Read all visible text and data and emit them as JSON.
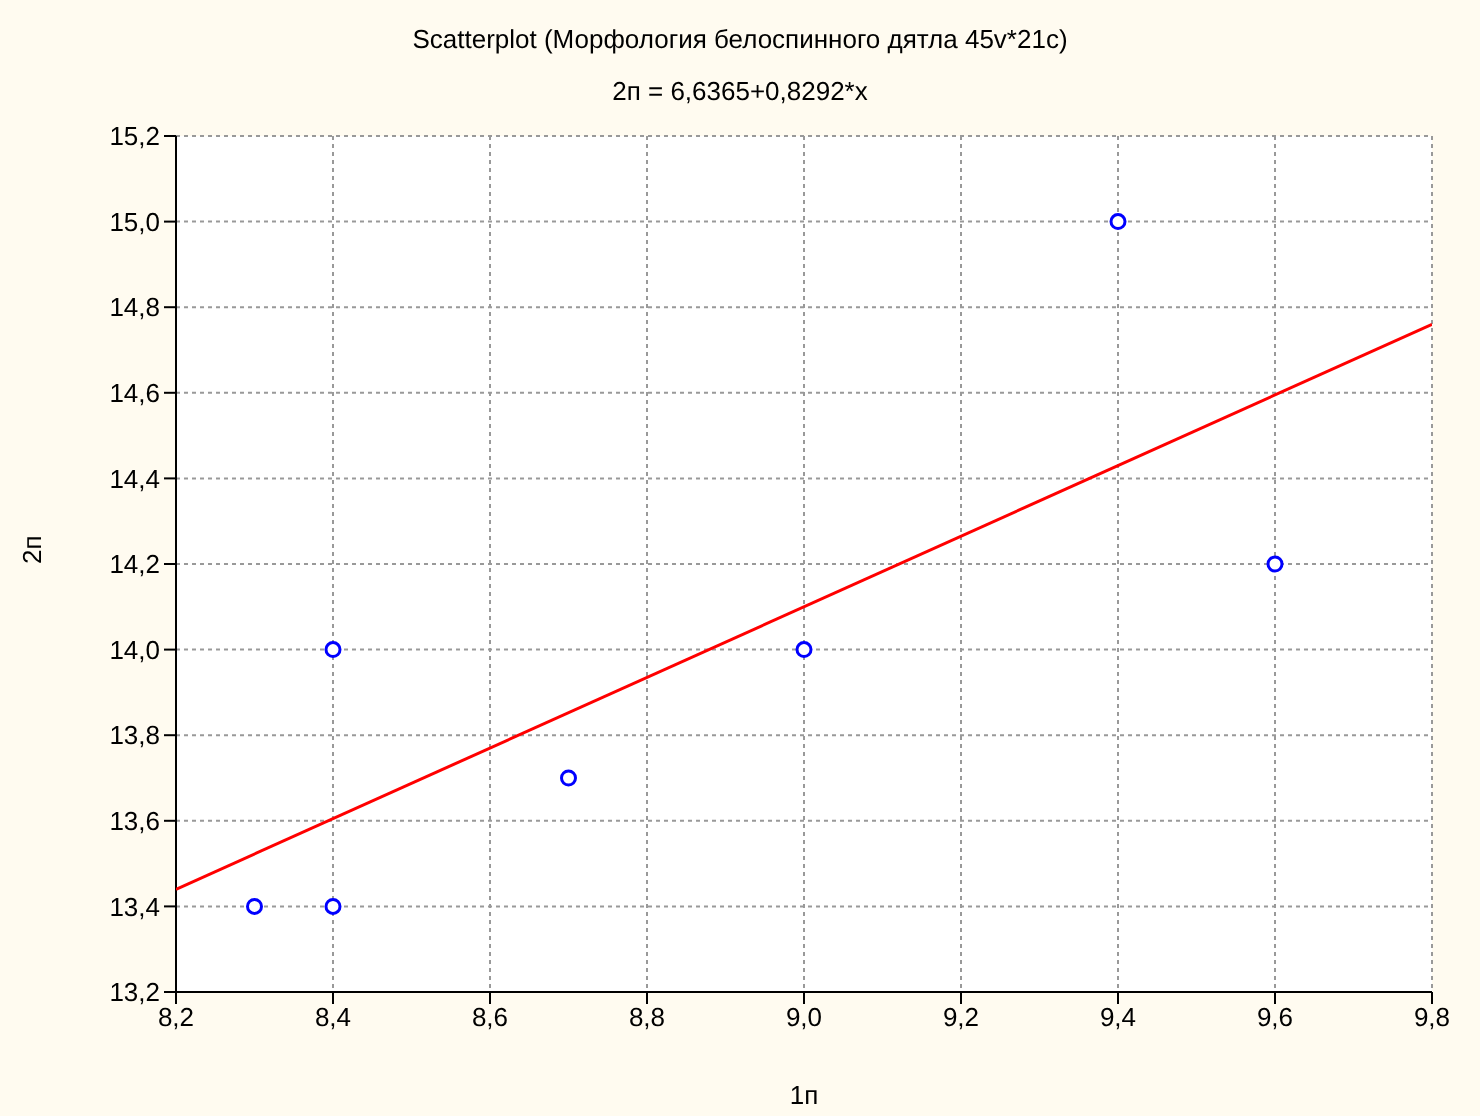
{
  "chart_data": {
    "type": "scatter",
    "title": "Scatterplot (Морфология белоспинного дятла 45v*21c)",
    "subtitle": "2п = 6,6365+0,8292*x",
    "xlabel": "1п",
    "ylabel": "2п",
    "series": [
      {
        "type": "scatter",
        "color": "#0000ff",
        "marker": "circle",
        "x": [
          8.3,
          8.4,
          8.4,
          8.7,
          9.0,
          9.4,
          9.6
        ],
        "values": [
          13.4,
          13.4,
          14.0,
          13.7,
          14.0,
          15.0,
          14.2
        ]
      },
      {
        "type": "line",
        "color": "#ff0000",
        "marker": "none",
        "line_style": "solid",
        "x": [
          8.2,
          9.8
        ],
        "values": [
          13.44,
          14.76
        ]
      }
    ],
    "xlim": [
      8.2,
      9.8
    ],
    "xticks": [
      {
        "value": 8.2,
        "label": "8,2"
      },
      {
        "value": 8.4,
        "label": "8,4"
      },
      {
        "value": 8.6,
        "label": "8,6"
      },
      {
        "value": 8.8,
        "label": "8,8"
      },
      {
        "value": 9.0,
        "label": "9,0"
      },
      {
        "value": 9.2,
        "label": "9,2"
      },
      {
        "value": 9.4,
        "label": "9,4"
      },
      {
        "value": 9.6,
        "label": "9,6"
      },
      {
        "value": 9.8,
        "label": "9,8"
      }
    ],
    "ylim": [
      13.2,
      15.2
    ],
    "yticks": [
      {
        "value": 13.2,
        "label": "13,2"
      },
      {
        "value": 13.4,
        "label": "13,4"
      },
      {
        "value": 13.6,
        "label": "13,6"
      },
      {
        "value": 13.8,
        "label": "13,8"
      },
      {
        "value": 14.0,
        "label": "14,0"
      },
      {
        "value": 14.2,
        "label": "14,2"
      },
      {
        "value": 14.4,
        "label": "14,4"
      },
      {
        "value": 14.6,
        "label": "14,6"
      },
      {
        "value": 14.8,
        "label": "14,8"
      },
      {
        "value": 15.0,
        "label": "15,0"
      },
      {
        "value": 15.2,
        "label": "15,2"
      }
    ],
    "grid": true,
    "legend": false
  }
}
